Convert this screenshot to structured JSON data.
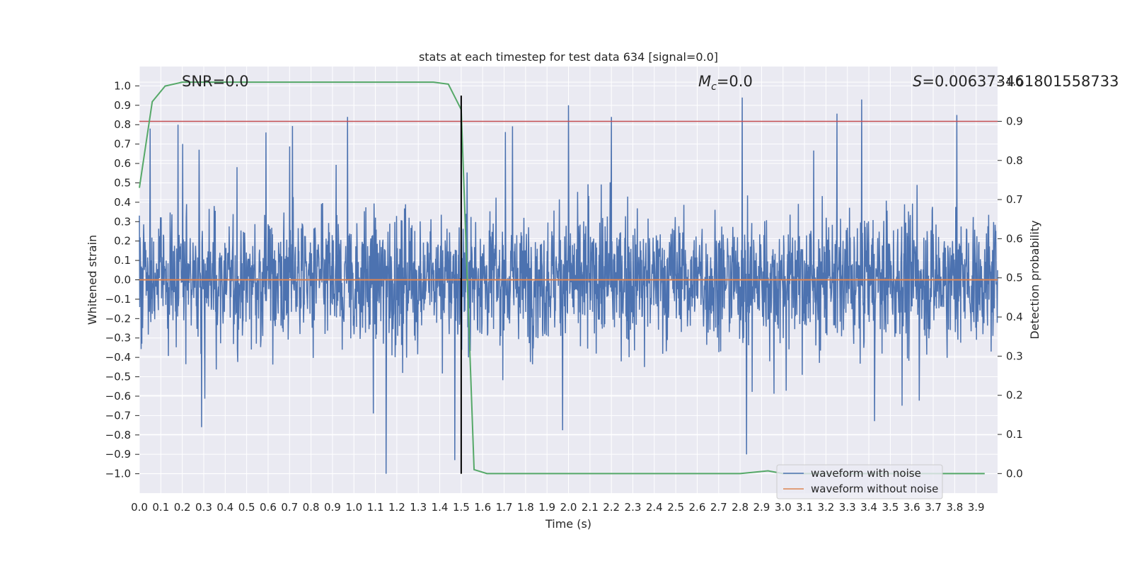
{
  "chart_data": {
    "type": "line",
    "title": "stats at each timestep for test data 634 [signal=0.0]",
    "xlabel": "Time (s)",
    "ylabel": "Whitened strain",
    "y2label": "Detection probability",
    "xlim": [
      0.0,
      4.0
    ],
    "ylim": [
      -1.1,
      1.1
    ],
    "y2lim": [
      -0.05,
      1.04
    ],
    "x_ticks": [
      0.0,
      0.1,
      0.2,
      0.3,
      0.4,
      0.5,
      0.6,
      0.7,
      0.8,
      0.9,
      1.0,
      1.1,
      1.2,
      1.3,
      1.4,
      1.5,
      1.6,
      1.7,
      1.8,
      1.9,
      2.0,
      2.1,
      2.2,
      2.3,
      2.4,
      2.5,
      2.6,
      2.7,
      2.8,
      2.9,
      3.0,
      3.1,
      3.2,
      3.3,
      3.4,
      3.5,
      3.6,
      3.7,
      3.8,
      3.9
    ],
    "y_ticks": [
      1.0,
      0.9,
      0.8,
      0.7,
      0.6,
      0.5,
      0.4,
      0.3,
      0.2,
      0.1,
      0.0,
      -0.1,
      -0.2,
      -0.3,
      -0.4,
      -0.5,
      -0.6,
      -0.7,
      -0.8,
      -0.9,
      -1.0
    ],
    "y2_ticks": [
      1.0,
      0.9,
      0.8,
      0.7,
      0.6,
      0.5,
      0.4,
      0.3,
      0.2,
      0.1,
      0.0
    ],
    "grid": true,
    "legend_position": "lower-right",
    "annotations": {
      "snr": "SNR=0.0",
      "mc_symbol": "M",
      "mc_subscript": "c",
      "mc_value": "=0.0",
      "s_symbol": "S",
      "s_value": "=0.006373461801558733"
    },
    "series": [
      {
        "name": "waveform with noise",
        "axis": "left",
        "color": "#4c72b0",
        "description_values": "dense noise, approx range -1.0 to 0.94",
        "x_range": [
          0.0,
          4.0
        ],
        "peaks": [
          {
            "x": 0.05,
            "y": 0.78
          },
          {
            "x": 0.18,
            "y": 0.8
          },
          {
            "x": 0.59,
            "y": 0.76
          },
          {
            "x": 0.97,
            "y": 0.84
          },
          {
            "x": 1.15,
            "y": -1.0
          },
          {
            "x": 1.47,
            "y": -0.93
          },
          {
            "x": 2.0,
            "y": 0.9
          },
          {
            "x": 2.2,
            "y": 0.84
          },
          {
            "x": 2.81,
            "y": 0.94
          },
          {
            "x": 2.83,
            "y": -0.9
          },
          {
            "x": 3.81,
            "y": 0.85
          },
          {
            "x": 0.29,
            "y": -0.76
          }
        ]
      },
      {
        "name": "waveform without noise",
        "axis": "left",
        "color": "#dd8452",
        "x": [
          0.0,
          4.0
        ],
        "y": [
          0.0,
          0.0
        ]
      },
      {
        "name": "",
        "axis": "right",
        "color": "#55a868",
        "x": [
          0.0,
          0.06,
          0.12,
          0.2,
          1.37,
          1.44,
          1.5,
          1.56,
          1.62,
          2.8,
          2.93,
          3.0,
          3.94
        ],
        "y": [
          0.73,
          0.95,
          0.99,
          1.0,
          1.0,
          0.995,
          0.93,
          0.01,
          0.0,
          0.0,
          0.007,
          0.0,
          0.0
        ]
      },
      {
        "name": "",
        "axis": "right",
        "color": "#c44e52",
        "x": [
          0.0,
          4.0
        ],
        "y": [
          0.9,
          0.9
        ]
      }
    ],
    "vertical_line": {
      "x": 1.5,
      "color": "#000000",
      "y_range": [
        -1.0,
        0.95
      ]
    }
  }
}
